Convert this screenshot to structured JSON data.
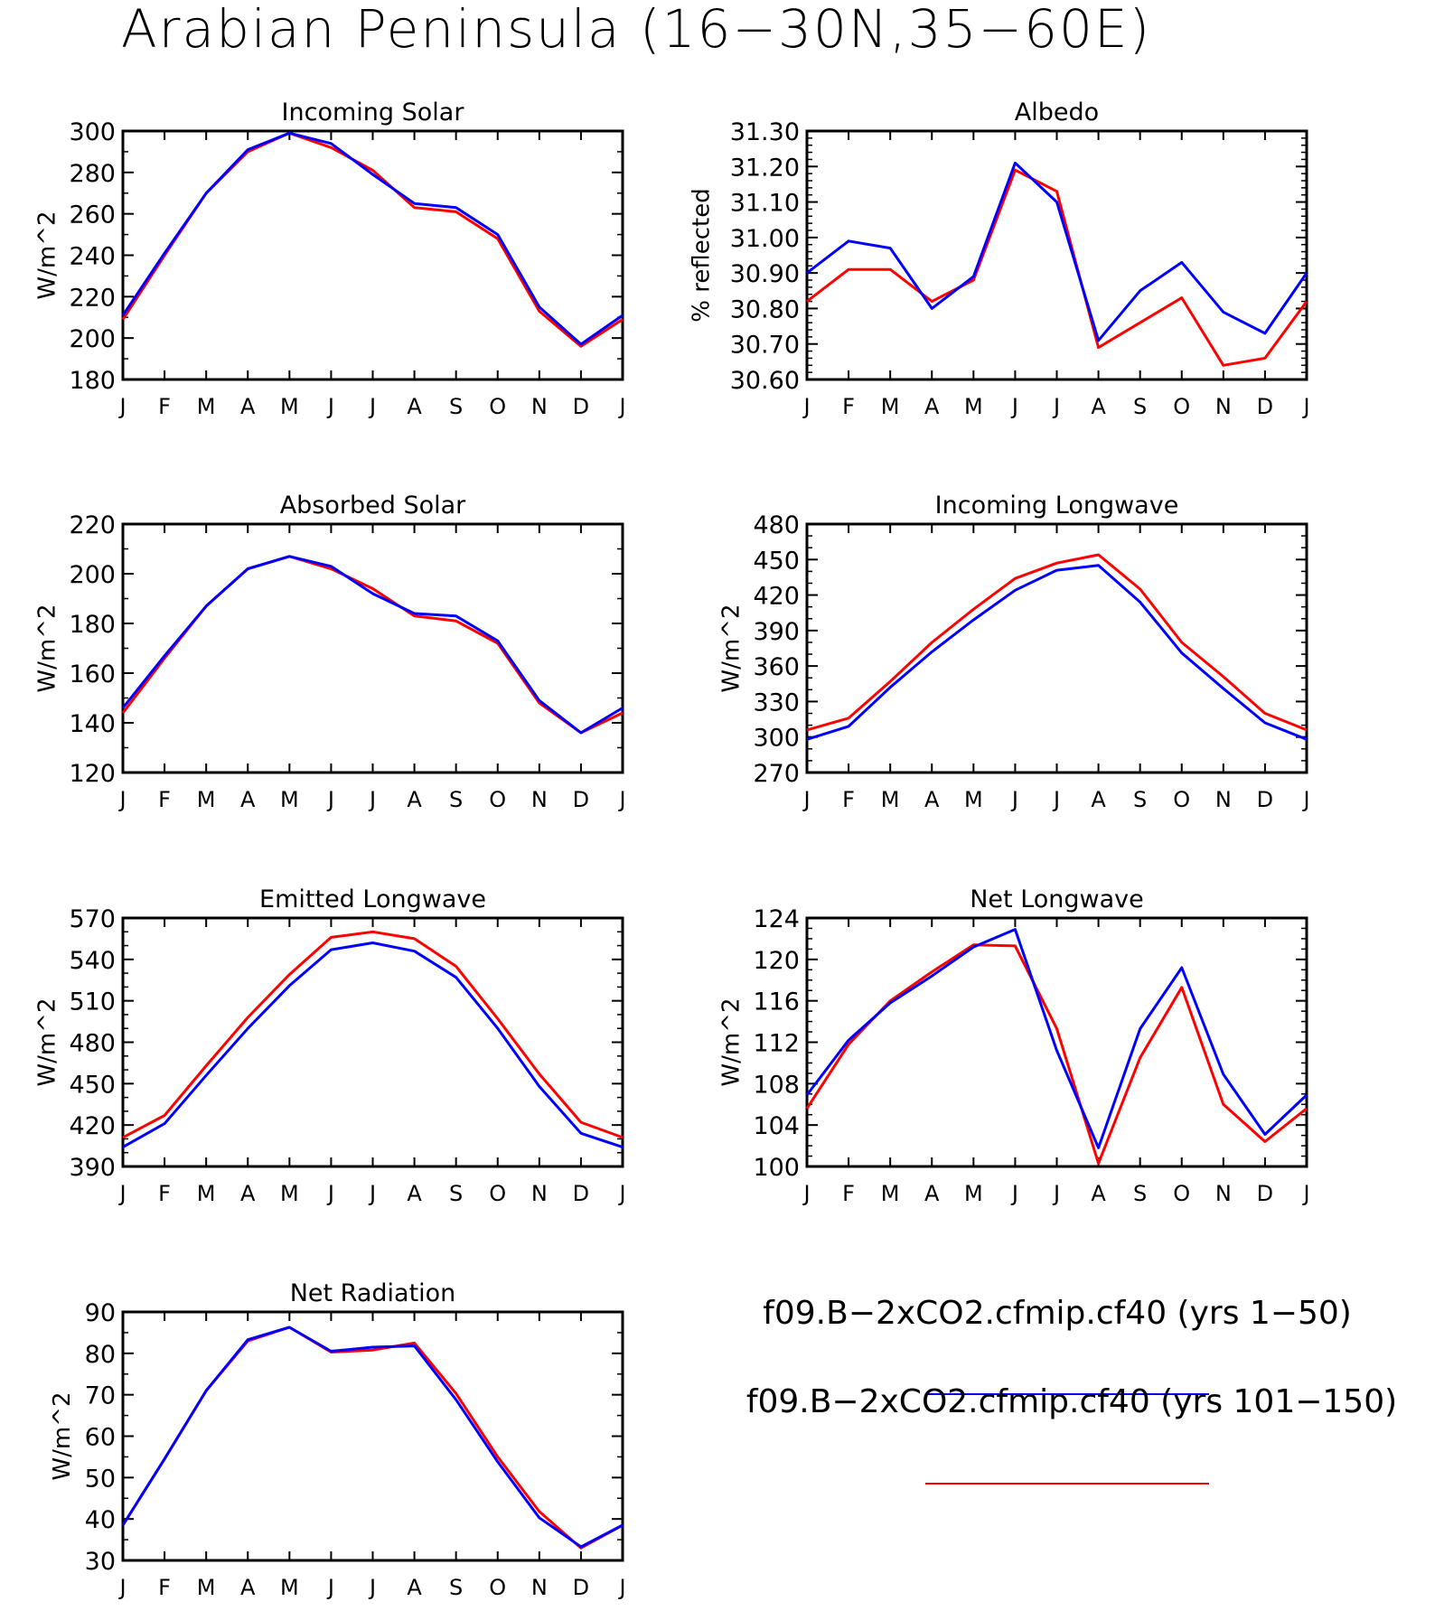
{
  "figure": {
    "title": "Arabian Peninsula (16−30N,35−60E)",
    "colors": {
      "series_1": "#0000ff",
      "series_2": "#ff0000",
      "axes": "#000000",
      "background": "#ffffff"
    }
  },
  "legend": {
    "entries": [
      {
        "label": "f09.B−2xCO2.cfmip.cf40 (yrs 1−50)",
        "color": "#0000ff"
      },
      {
        "label": "f09.B−2xCO2.cfmip.cf40 (yrs 101−150)",
        "color": "#ff0000"
      }
    ]
  },
  "chart_data": [
    {
      "type": "line",
      "title": "Incoming Solar",
      "ylabel": "W/m^2",
      "categories": [
        "J",
        "F",
        "M",
        "A",
        "M",
        "J",
        "J",
        "A",
        "S",
        "O",
        "N",
        "D",
        "J"
      ],
      "ylim": [
        180,
        300
      ],
      "yticks": [
        "180",
        "200",
        "220",
        "240",
        "260",
        "280",
        "300"
      ],
      "y_minor_step": 10,
      "series": [
        {
          "name": "f09.B−2xCO2.cfmip.cf40 (yrs 1−50)",
          "color": "#0000ff",
          "values": [
            211,
            241,
            270,
            291,
            299,
            294,
            279,
            265,
            263,
            250,
            215,
            197,
            211
          ]
        },
        {
          "name": "f09.B−2xCO2.cfmip.cf40 (yrs 101−150)",
          "color": "#ff0000",
          "values": [
            209,
            240,
            270,
            290,
            299,
            292,
            281,
            263,
            261,
            248,
            213,
            196,
            209
          ]
        }
      ]
    },
    {
      "type": "line",
      "title": "Albedo",
      "ylabel": "% reflected",
      "categories": [
        "J",
        "F",
        "M",
        "A",
        "M",
        "J",
        "J",
        "A",
        "S",
        "O",
        "N",
        "D",
        "J"
      ],
      "ylim": [
        30.6,
        31.3
      ],
      "yticks": [
        "30.60",
        "30.70",
        "30.80",
        "30.90",
        "31.00",
        "31.10",
        "31.20",
        "31.30"
      ],
      "y_minor_step": 0.02,
      "series": [
        {
          "name": "f09.B−2xCO2.cfmip.cf40 (yrs 1−50)",
          "color": "#0000ff",
          "values": [
            30.9,
            30.99,
            30.97,
            30.8,
            30.89,
            31.21,
            31.1,
            30.71,
            30.85,
            30.93,
            30.79,
            30.73,
            30.9
          ]
        },
        {
          "name": "f09.B−2xCO2.cfmip.cf40 (yrs 101−150)",
          "color": "#ff0000",
          "values": [
            30.82,
            30.91,
            30.91,
            30.82,
            30.88,
            31.19,
            31.13,
            30.69,
            30.76,
            30.83,
            30.64,
            30.66,
            30.82
          ]
        }
      ]
    },
    {
      "type": "line",
      "title": "Absorbed Solar",
      "ylabel": "W/m^2",
      "categories": [
        "J",
        "F",
        "M",
        "A",
        "M",
        "J",
        "J",
        "A",
        "S",
        "O",
        "N",
        "D",
        "J"
      ],
      "ylim": [
        120,
        220
      ],
      "yticks": [
        "120",
        "140",
        "160",
        "180",
        "200",
        "220"
      ],
      "y_minor_step": 10,
      "series": [
        {
          "name": "f09.B−2xCO2.cfmip.cf40 (yrs 1−50)",
          "color": "#0000ff",
          "values": [
            146,
            167,
            187,
            202,
            207,
            203,
            192,
            184,
            183,
            173,
            149,
            136,
            146
          ]
        },
        {
          "name": "f09.B−2xCO2.cfmip.cf40 (yrs 101−150)",
          "color": "#ff0000",
          "values": [
            144,
            166,
            187,
            202,
            207,
            202,
            194,
            183,
            181,
            172,
            148,
            136,
            144
          ]
        }
      ]
    },
    {
      "type": "line",
      "title": "Incoming Longwave",
      "ylabel": "W/m^2",
      "categories": [
        "J",
        "F",
        "M",
        "A",
        "M",
        "J",
        "J",
        "A",
        "S",
        "O",
        "N",
        "D",
        "J"
      ],
      "ylim": [
        270,
        480
      ],
      "yticks": [
        "270",
        "300",
        "330",
        "360",
        "390",
        "420",
        "450",
        "480"
      ],
      "y_minor_step": 10,
      "series": [
        {
          "name": "f09.B−2xCO2.cfmip.cf40 (yrs 1−50)",
          "color": "#0000ff",
          "values": [
            298,
            309,
            342,
            372,
            399,
            424,
            441,
            445,
            414,
            371,
            341,
            312,
            298
          ]
        },
        {
          "name": "f09.B−2xCO2.cfmip.cf40 (yrs 101−150)",
          "color": "#ff0000",
          "values": [
            306,
            316,
            347,
            380,
            408,
            434,
            447,
            454,
            425,
            380,
            351,
            320,
            306
          ]
        }
      ]
    },
    {
      "type": "line",
      "title": "Emitted Longwave",
      "ylabel": "W/m^2",
      "categories": [
        "J",
        "F",
        "M",
        "A",
        "M",
        "J",
        "J",
        "A",
        "S",
        "O",
        "N",
        "D",
        "J"
      ],
      "ylim": [
        390,
        570
      ],
      "yticks": [
        "390",
        "420",
        "450",
        "480",
        "510",
        "540",
        "570"
      ],
      "y_minor_step": 10,
      "series": [
        {
          "name": "f09.B−2xCO2.cfmip.cf40 (yrs 1−50)",
          "color": "#0000ff",
          "values": [
            404,
            421,
            456,
            490,
            521,
            547,
            552,
            546,
            527,
            490,
            448,
            414,
            404
          ]
        },
        {
          "name": "f09.B−2xCO2.cfmip.cf40 (yrs 101−150)",
          "color": "#ff0000",
          "values": [
            411,
            427,
            463,
            498,
            529,
            556,
            560,
            555,
            535,
            497,
            457,
            422,
            411
          ]
        }
      ]
    },
    {
      "type": "line",
      "title": "Net Longwave",
      "ylabel": "W/m^2",
      "categories": [
        "J",
        "F",
        "M",
        "A",
        "M",
        "J",
        "J",
        "A",
        "S",
        "O",
        "N",
        "D",
        "J"
      ],
      "ylim": [
        100,
        124
      ],
      "yticks": [
        "100",
        "104",
        "108",
        "112",
        "116",
        "120",
        "124"
      ],
      "y_minor_step": 1,
      "series": [
        {
          "name": "f09.B−2xCO2.cfmip.cf40 (yrs 1−50)",
          "color": "#0000ff",
          "values": [
            106.9,
            112.2,
            115.8,
            118.4,
            121.2,
            122.9,
            111.2,
            101.8,
            113.3,
            119.2,
            108.9,
            103.1,
            106.9
          ]
        },
        {
          "name": "f09.B−2xCO2.cfmip.cf40 (yrs 101−150)",
          "color": "#ff0000",
          "values": [
            105.6,
            111.8,
            116.0,
            118.8,
            121.4,
            121.3,
            113.3,
            100.3,
            110.5,
            117.3,
            106.0,
            102.4,
            105.6
          ]
        }
      ]
    },
    {
      "type": "line",
      "title": "Net Radiation",
      "ylabel": "W/m^2",
      "categories": [
        "J",
        "F",
        "M",
        "A",
        "M",
        "J",
        "J",
        "A",
        "S",
        "O",
        "N",
        "D",
        "J"
      ],
      "ylim": [
        30,
        90
      ],
      "yticks": [
        "30",
        "40",
        "50",
        "60",
        "70",
        "80",
        "90"
      ],
      "y_minor_step": 5,
      "series": [
        {
          "name": "f09.B−2xCO2.cfmip.cf40 (yrs 1−50)",
          "color": "#0000ff",
          "values": [
            38.5,
            54.5,
            71,
            83.3,
            86.3,
            80.5,
            81.5,
            81.8,
            68.8,
            53.8,
            40.3,
            33.3,
            38.5
          ]
        },
        {
          "name": "f09.B−2xCO2.cfmip.cf40 (yrs 101−150)",
          "color": "#ff0000",
          "values": [
            38.5,
            54.5,
            71,
            83.0,
            86.3,
            80.3,
            80.8,
            82.5,
            70.3,
            55.0,
            41.8,
            33.0,
            38.5
          ]
        }
      ]
    }
  ]
}
